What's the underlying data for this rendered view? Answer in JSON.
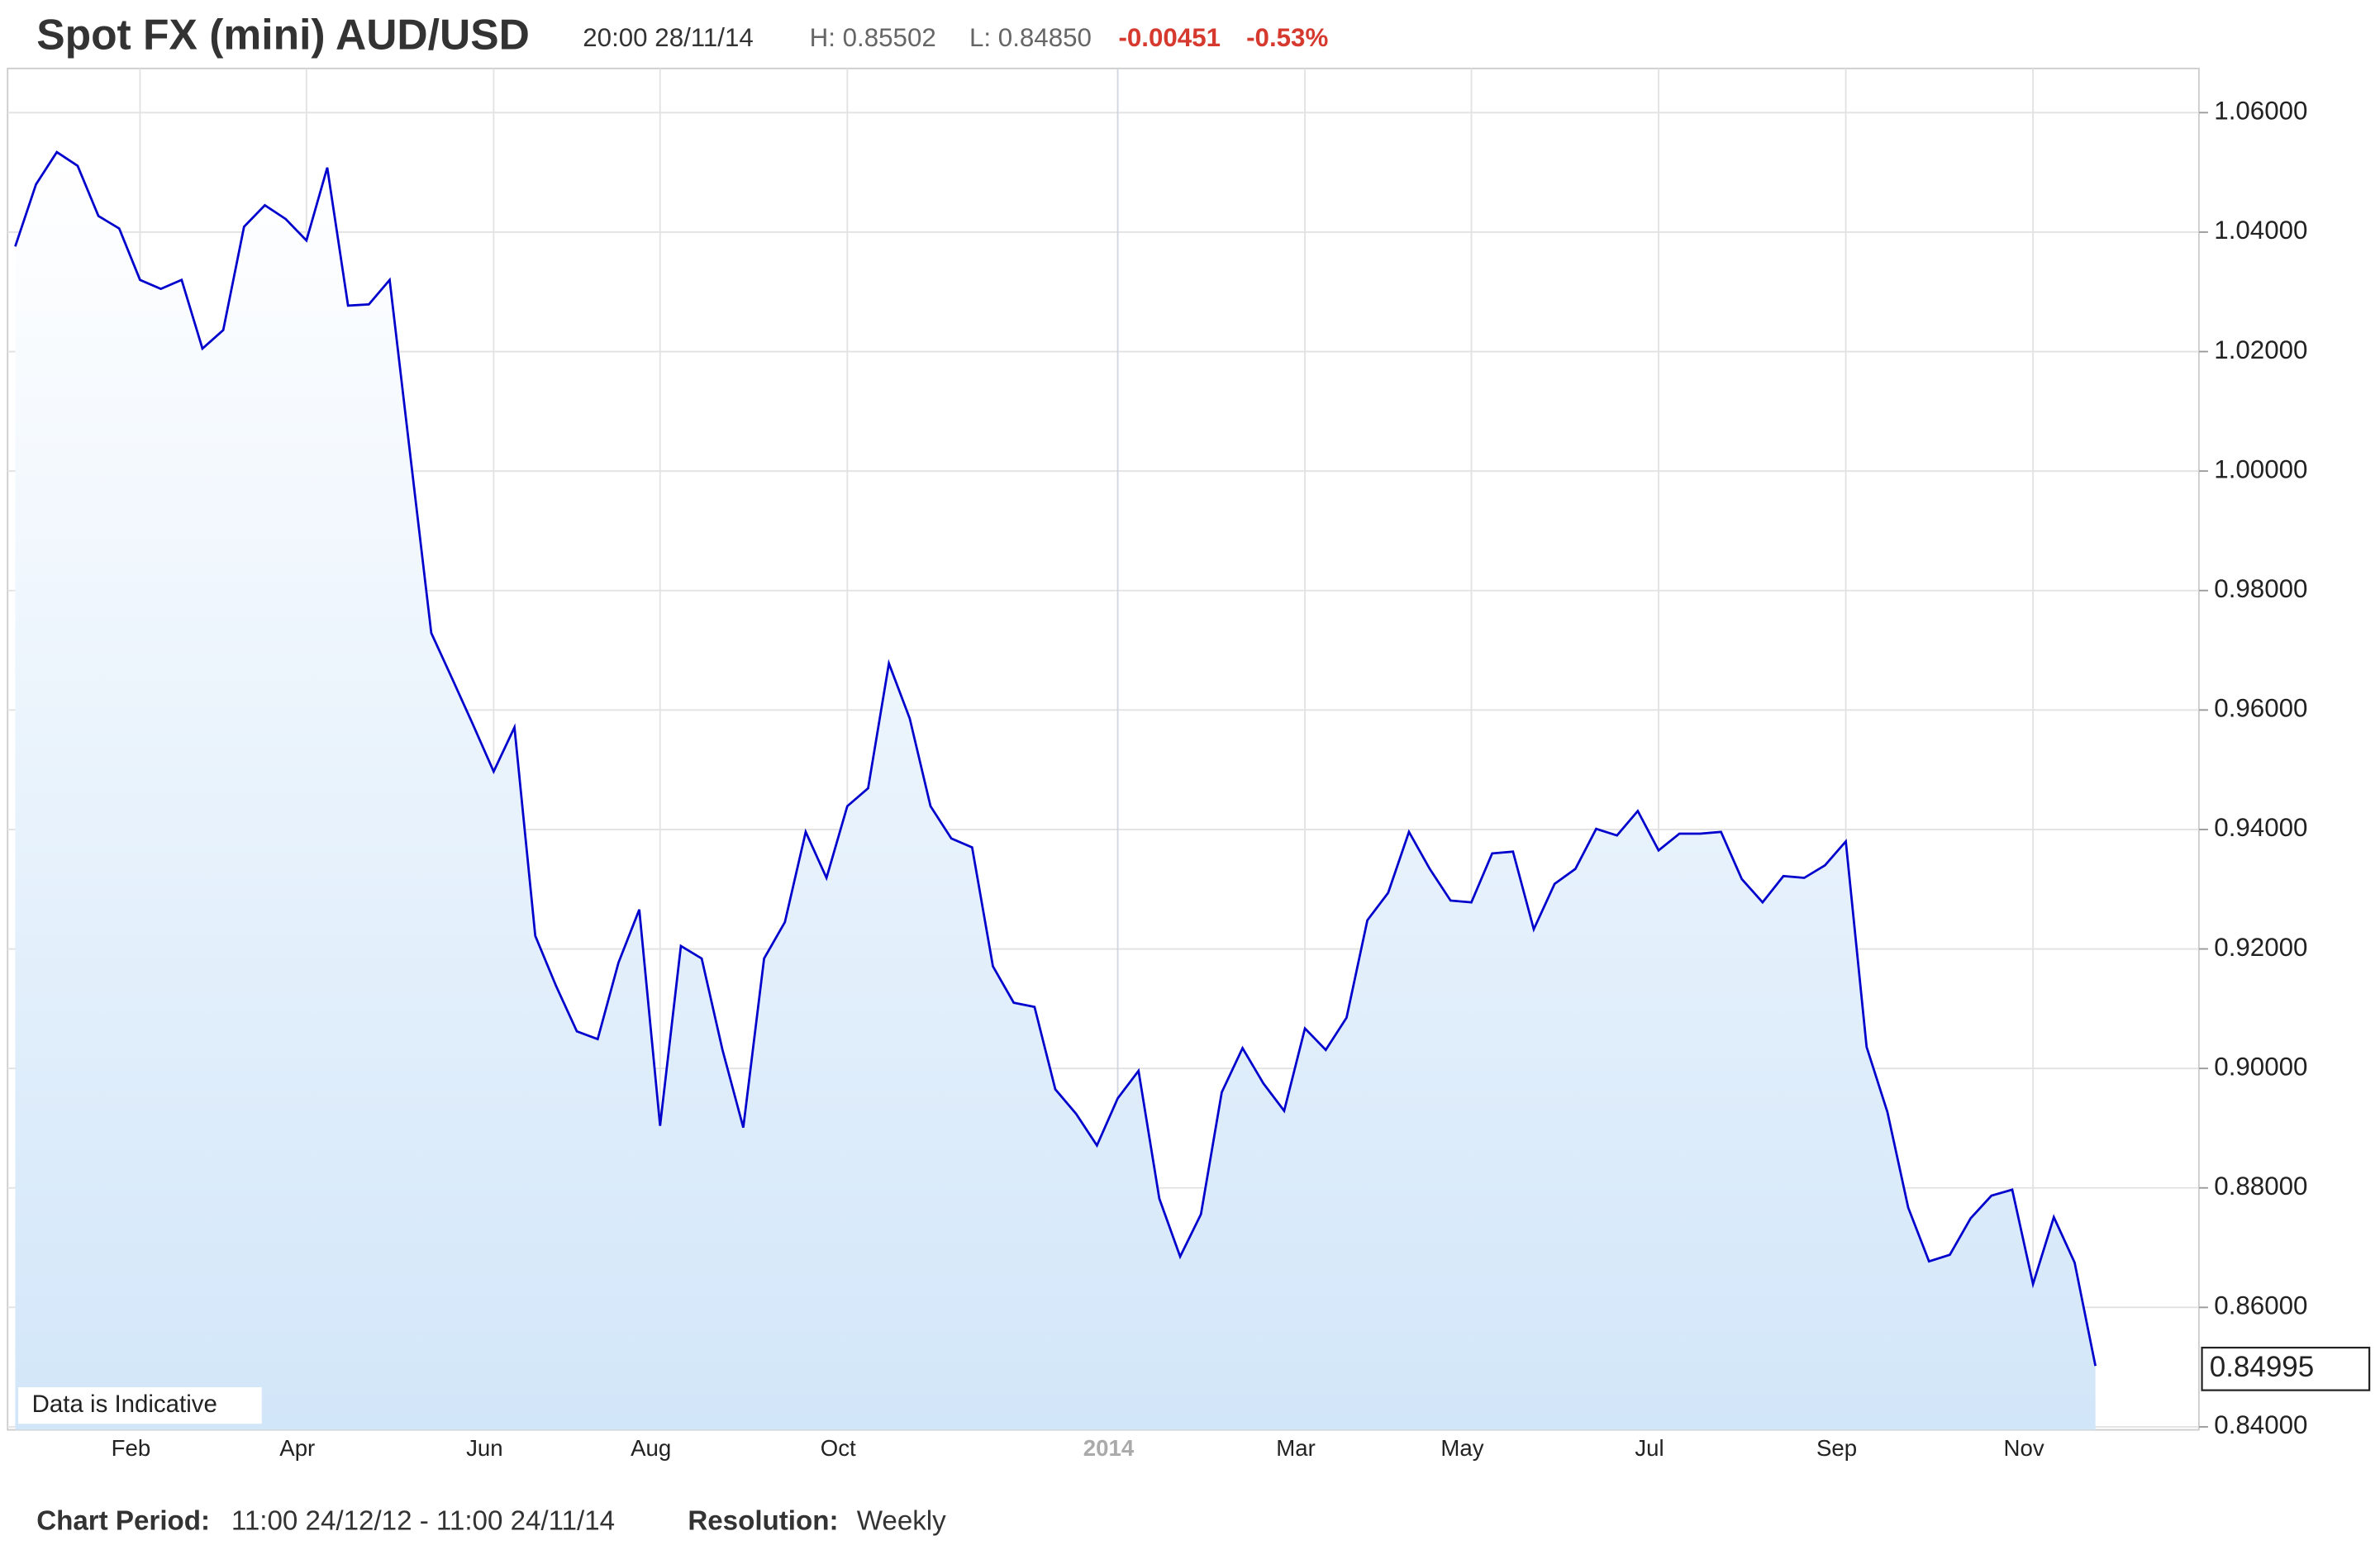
{
  "header": {
    "title": "Spot FX (mini) AUD/USD",
    "time": "20:00 28/11/14",
    "high": "H: 0.85502",
    "low": "L: 0.84850",
    "change": "-0.00451",
    "change_pct": "-0.53%"
  },
  "footer": {
    "period_label": "Chart Period:",
    "period": "11:00 24/12/12 - 11:00 24/11/14",
    "resolution_label": "Resolution:",
    "resolution": "Weekly"
  },
  "chart_data": {
    "type": "area",
    "note": "Data is Indicative",
    "color": "#0000cc",
    "grid": true,
    "categories": [
      null,
      null,
      null,
      null,
      null,
      null,
      "Feb",
      null,
      null,
      null,
      null,
      null,
      null,
      null,
      "Apr",
      null,
      null,
      null,
      null,
      null,
      null,
      null,
      null,
      "Jun",
      null,
      null,
      null,
      null,
      null,
      null,
      null,
      "Aug",
      null,
      null,
      null,
      null,
      null,
      null,
      null,
      null,
      "Oct",
      null,
      null,
      null,
      null,
      null,
      null,
      null,
      null,
      null,
      null,
      null,
      null,
      "2014",
      null,
      null,
      null,
      null,
      null,
      null,
      null,
      null,
      "Mar",
      null,
      null,
      null,
      null,
      null,
      null,
      null,
      "May",
      null,
      null,
      null,
      null,
      null,
      null,
      null,
      null,
      "Jul",
      null,
      null,
      null,
      null,
      null,
      null,
      null,
      null,
      "Sep",
      null,
      null,
      null,
      null,
      null,
      null,
      null,
      null,
      "Nov",
      null,
      null,
      null
    ],
    "values": [
      1.0376,
      1.048,
      1.0534,
      1.0511,
      1.0427,
      1.0406,
      1.032,
      1.0305,
      1.032,
      1.0205,
      1.0236,
      1.0409,
      1.0445,
      1.0422,
      1.0386,
      1.0508,
      1.0277,
      1.0279,
      1.032,
      1.0024,
      0.9729,
      0.9653,
      0.9576,
      0.9497,
      0.9571,
      0.9222,
      0.9138,
      0.9062,
      0.9049,
      0.9177,
      0.9266,
      0.8904,
      0.9205,
      0.9184,
      0.9031,
      0.8901,
      0.9184,
      0.9245,
      0.9396,
      0.9319,
      0.9439,
      0.9469,
      0.9678,
      0.9586,
      0.9439,
      0.9385,
      0.937,
      0.9171,
      0.911,
      0.9103,
      0.8965,
      0.8924,
      0.8871,
      0.895,
      0.8996,
      0.8782,
      0.8685,
      0.8756,
      0.896,
      0.9034,
      0.8975,
      0.8929,
      0.9067,
      0.9031,
      0.9085,
      0.9248,
      0.9294,
      0.9396,
      0.9334,
      0.9281,
      0.9278,
      0.936,
      0.9363,
      0.9233,
      0.9309,
      0.9334,
      0.9401,
      0.939,
      0.9431,
      0.9365,
      0.9393,
      0.9393,
      0.9396,
      0.9317,
      0.9278,
      0.9322,
      0.9319,
      0.934,
      0.938,
      0.9036,
      0.8927,
      0.8767,
      0.8677,
      0.8688,
      0.8749,
      0.8787,
      0.8797,
      0.8639,
      0.8751,
      0.8675,
      0.8502
    ],
    "current_value": 0.84995,
    "ylim": [
      0.8395,
      1.0674
    ],
    "yticks": [
      {
        "value": 0.84,
        "label": "0.84000"
      },
      {
        "value": 0.86,
        "label": "0.86000"
      },
      {
        "value": 0.88,
        "label": "0.88000"
      },
      {
        "value": 0.9,
        "label": "0.90000"
      },
      {
        "value": 0.92,
        "label": "0.92000"
      },
      {
        "value": 0.94,
        "label": "0.94000"
      },
      {
        "value": 0.96,
        "label": "0.96000"
      },
      {
        "value": 0.98,
        "label": "0.98000"
      },
      {
        "value": 1.0,
        "label": "1.00000"
      },
      {
        "value": 1.02,
        "label": "1.02000"
      },
      {
        "value": 1.04,
        "label": "1.04000"
      },
      {
        "value": 1.06,
        "label": "1.06000"
      }
    ]
  }
}
